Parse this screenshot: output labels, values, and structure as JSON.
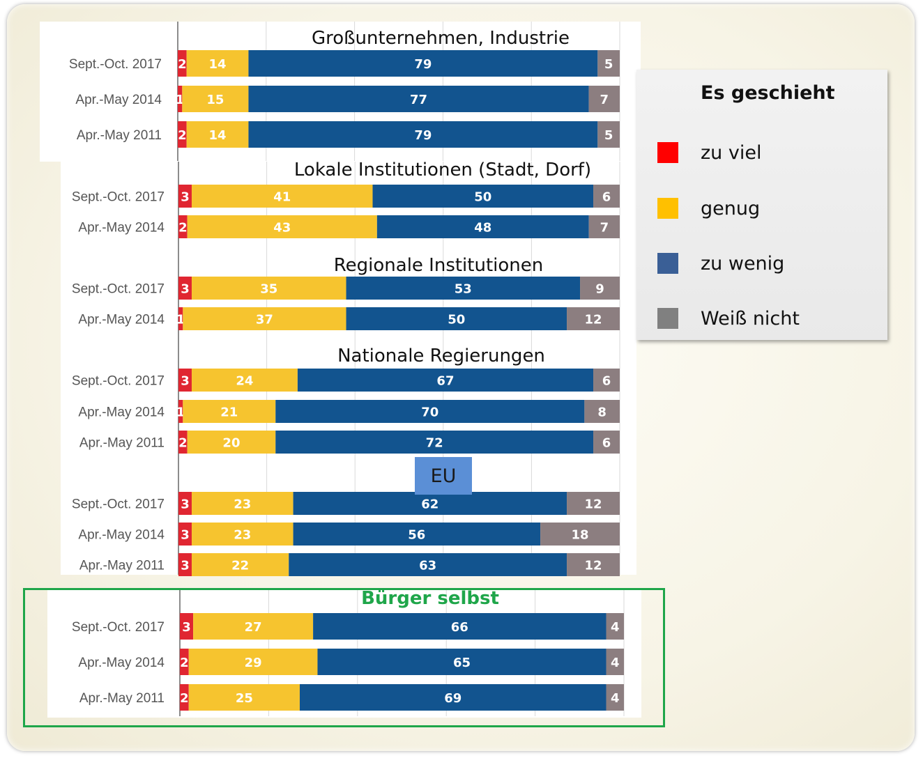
{
  "colors": {
    "zu_viel": "#e02631",
    "genug": "#f6c42f",
    "zu_wenig": "#12548f",
    "weiss_nicht": "#8c7e80",
    "highlight_title": "#1fa64a"
  },
  "legend": {
    "title": "Es geschieht",
    "items": [
      {
        "label": "zu viel",
        "color": "#ff0000"
      },
      {
        "label": "genug",
        "color": "#ffc000"
      },
      {
        "label": "zu wenig",
        "color": "#3a5f96"
      },
      {
        "label": "Weiß nicht",
        "color": "#808080"
      }
    ]
  },
  "chart_data": {
    "type": "bar",
    "orientation": "horizontal-stacked-100",
    "series_names": [
      "zu viel",
      "genug",
      "zu wenig",
      "Weiß nicht"
    ],
    "groups": [
      {
        "title": "Großunternehmen, Industrie",
        "rows": [
          {
            "label": "Sept.-Oct. 2017",
            "values": [
              2,
              14,
              79,
              5
            ]
          },
          {
            "label": "Apr.-May 2014",
            "values": [
              1,
              15,
              77,
              7
            ]
          },
          {
            "label": "Apr.-May 2011",
            "values": [
              2,
              14,
              79,
              5
            ]
          }
        ]
      },
      {
        "title": "Lokale Institutionen (Stadt, Dorf)",
        "rows": [
          {
            "label": "Sept.-Oct. 2017",
            "values": [
              3,
              41,
              50,
              6
            ]
          },
          {
            "label": "Apr.-May 2014",
            "values": [
              2,
              43,
              48,
              7
            ]
          }
        ]
      },
      {
        "title": "Regionale Institutionen",
        "rows": [
          {
            "label": "Sept.-Oct. 2017",
            "values": [
              3,
              35,
              53,
              9
            ]
          },
          {
            "label": "Apr.-May 2014",
            "values": [
              1,
              37,
              50,
              12
            ]
          }
        ]
      },
      {
        "title": "Nationale Regierungen",
        "rows": [
          {
            "label": "Sept.-Oct. 2017",
            "values": [
              3,
              24,
              67,
              6
            ]
          },
          {
            "label": "Apr.-May 2014",
            "values": [
              1,
              21,
              70,
              8
            ]
          },
          {
            "label": "Apr.-May 2011",
            "values": [
              2,
              20,
              72,
              6
            ]
          }
        ]
      },
      {
        "title": "EU",
        "rows": [
          {
            "label": "Sept.-Oct. 2017",
            "values": [
              3,
              23,
              62,
              12
            ]
          },
          {
            "label": "Apr.-May 2014",
            "values": [
              3,
              23,
              56,
              18
            ]
          },
          {
            "label": "Apr.-May 2011",
            "values": [
              3,
              22,
              63,
              12
            ]
          }
        ]
      },
      {
        "title": "Bürger selbst",
        "highlighted": true,
        "rows": [
          {
            "label": "Sept.-Oct. 2017",
            "values": [
              3,
              27,
              66,
              4
            ]
          },
          {
            "label": "Apr.-May 2014",
            "values": [
              2,
              29,
              65,
              4
            ]
          },
          {
            "label": "Apr.-May 2011",
            "values": [
              2,
              25,
              69,
              4
            ]
          }
        ]
      }
    ]
  }
}
